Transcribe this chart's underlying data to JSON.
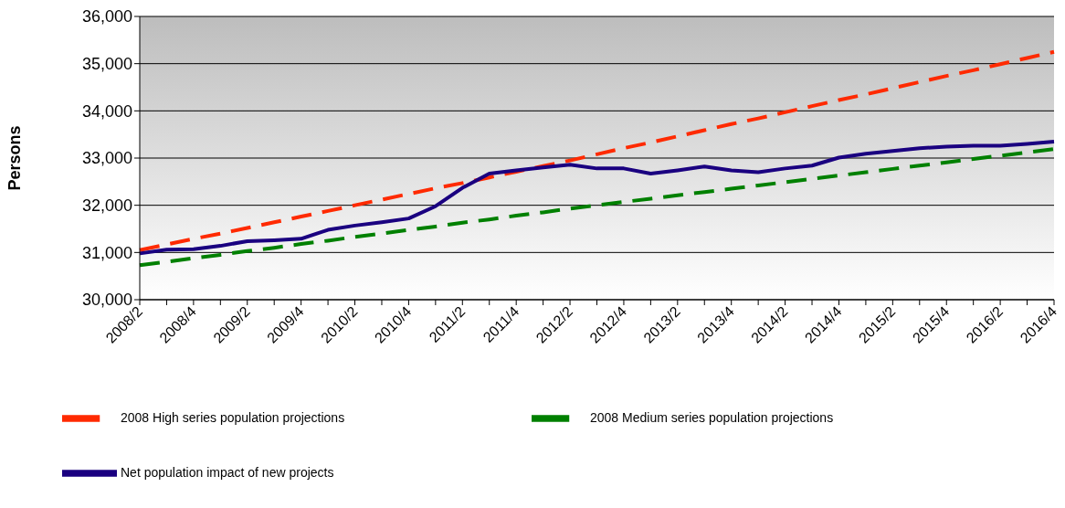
{
  "chart_data": {
    "type": "line",
    "ylabel": "Persons",
    "categories": [
      "2008/2",
      null,
      "2008/4",
      null,
      "2009/2",
      null,
      "2009/4",
      null,
      "2010/2",
      null,
      "2010/4",
      null,
      "2011/2",
      null,
      "2011/4",
      null,
      "2012/2",
      null,
      "2012/4",
      null,
      "2013/2",
      null,
      "2013/4",
      null,
      "2014/2",
      null,
      "2014/4",
      null,
      "2015/2",
      null,
      "2015/4",
      null,
      "2016/2",
      null,
      "2016/4"
    ],
    "series": [
      {
        "name": "2008 High series population projections",
        "color": "#ff2a00",
        "line_style": "dashed",
        "values": [
          31050,
          31170,
          31290,
          31400,
          31520,
          31640,
          31760,
          31880,
          32000,
          32120,
          32240,
          32360,
          32470,
          32590,
          32710,
          32830,
          32950,
          33080,
          33210,
          33330,
          33460,
          33590,
          33720,
          33840,
          33970,
          34100,
          34230,
          34350,
          34480,
          34610,
          34740,
          34860,
          34990,
          35120,
          35250
        ]
      },
      {
        "name": "2008 Medium series population projections",
        "color": "#008000",
        "line_style": "dashed",
        "values": [
          30730,
          30800,
          30880,
          30950,
          31030,
          31100,
          31180,
          31250,
          31330,
          31400,
          31480,
          31550,
          31630,
          31700,
          31780,
          31850,
          31930,
          32000,
          32070,
          32140,
          32210,
          32280,
          32350,
          32420,
          32490,
          32560,
          32630,
          32700,
          32770,
          32840,
          32910,
          32980,
          33050,
          33120,
          33190
        ]
      },
      {
        "name": "Net population impact of new projects",
        "color": "#1a0080",
        "line_style": "solid",
        "values": [
          30980,
          31060,
          31070,
          31140,
          31240,
          31260,
          31290,
          31480,
          31570,
          31640,
          31720,
          31980,
          32370,
          32670,
          32740,
          32800,
          32860,
          32780,
          32780,
          32670,
          32740,
          32820,
          32740,
          32700,
          32780,
          32840,
          33010,
          33090,
          33150,
          33210,
          33240,
          33260,
          33260,
          33300,
          33350
        ]
      }
    ],
    "ylim": [
      30000,
      36000
    ],
    "yticks": [
      {
        "value": 30000,
        "label": "30,000"
      },
      {
        "value": 31000,
        "label": "31,000"
      },
      {
        "value": 32000,
        "label": "32,000"
      },
      {
        "value": 33000,
        "label": "33,000"
      },
      {
        "value": 34000,
        "label": "34,000"
      },
      {
        "value": 35000,
        "label": "35,000"
      },
      {
        "value": 36000,
        "label": "36,000"
      }
    ],
    "grid": "y",
    "legend": "bottom",
    "marker": "none"
  }
}
